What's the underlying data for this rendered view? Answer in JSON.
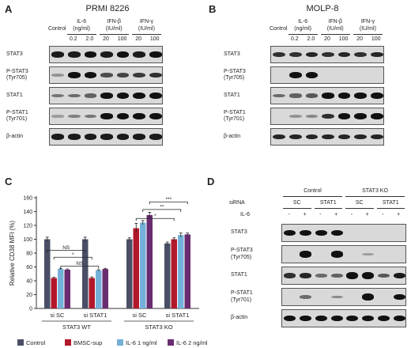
{
  "panels": {
    "a": {
      "letter": "A",
      "title": "PRMI 8226",
      "control": "Control",
      "treatments": [
        {
          "name": "IL-6",
          "unit": "(ng/ml)",
          "doses": [
            "0.2",
            "2.0"
          ]
        },
        {
          "name": "IFN-β",
          "unit": "(IU/ml)",
          "doses": [
            "20",
            "100"
          ]
        },
        {
          "name": "IFN-γ",
          "unit": "(IU/ml)",
          "doses": [
            "20",
            "100"
          ]
        }
      ],
      "rows": [
        {
          "label": "STAT3",
          "bands": [
            0.7,
            0.7,
            0.75,
            0.7,
            0.75,
            0.7,
            0.75
          ]
        },
        {
          "label": "P-STAT3\n(Tyr705)",
          "bands": [
            0.1,
            0.75,
            0.85,
            0.45,
            0.5,
            0.55,
            0.6
          ]
        },
        {
          "label": "STAT1",
          "bands": [
            0.25,
            0.3,
            0.35,
            0.8,
            0.85,
            0.9,
            0.9
          ]
        },
        {
          "label": "P-STAT1\n(Tyr701)",
          "bands": [
            0.05,
            0.2,
            0.25,
            0.8,
            0.9,
            0.9,
            0.95
          ]
        },
        {
          "label": "β-actin",
          "bands": [
            0.7,
            0.7,
            0.7,
            0.7,
            0.7,
            0.7,
            0.7
          ]
        }
      ]
    },
    "b": {
      "letter": "B",
      "title": "MOLP-8",
      "control": "Control",
      "treatments": [
        {
          "name": "IL-6",
          "unit": "(ng/ml)",
          "doses": [
            "0.2",
            "2.0"
          ]
        },
        {
          "name": "IFN-β",
          "unit": "(IU/ml)",
          "doses": [
            "20",
            "100"
          ]
        },
        {
          "name": "IFN-γ",
          "unit": "(IU/ml)",
          "doses": [
            "20",
            "100"
          ]
        }
      ],
      "rows": [
        {
          "label": "STAT3",
          "bands": [
            0.6,
            0.6,
            0.65,
            0.6,
            0.65,
            0.6,
            0.65
          ]
        },
        {
          "label": "P-STAT3\n(Tyr705)",
          "bands": [
            0.0,
            0.85,
            0.9,
            0.0,
            0.0,
            0.0,
            0.0
          ]
        },
        {
          "label": "STAT1",
          "bands": [
            0.3,
            0.35,
            0.4,
            0.8,
            0.85,
            0.85,
            0.9
          ]
        },
        {
          "label": "P-STAT1\n(Tyr701)",
          "bands": [
            0.0,
            0.1,
            0.15,
            0.6,
            0.8,
            0.85,
            0.9
          ]
        },
        {
          "label": "β-actin",
          "bands": [
            0.65,
            0.65,
            0.65,
            0.65,
            0.65,
            0.65,
            0.65
          ]
        }
      ]
    },
    "c": {
      "letter": "C"
    },
    "d": {
      "letter": "D",
      "group_labels": [
        "Control",
        "STAT3 KO"
      ],
      "sirna_label": "siRNA",
      "il6_label": "IL-6",
      "sirna": [
        "SC",
        "STAT1",
        "SC",
        "STAT1"
      ],
      "il6": [
        "-",
        "+",
        "-",
        "+",
        "-",
        "+",
        "-",
        "+"
      ],
      "rows": [
        {
          "label": "STAT3",
          "bands": [
            0.75,
            0.8,
            0.75,
            0.8,
            0.0,
            0.0,
            0.0,
            0.0
          ]
        },
        {
          "label": "P-STAT3\n(Tyr705)",
          "bands": [
            0.0,
            0.85,
            0.0,
            0.85,
            0.0,
            0.05,
            0.0,
            0.0
          ]
        },
        {
          "label": "STAT1",
          "bands": [
            0.6,
            0.65,
            0.3,
            0.35,
            1.0,
            1.0,
            0.4,
            0.7
          ]
        },
        {
          "label": "P-STAT1\n(Tyr701)",
          "bands": [
            0.0,
            0.3,
            0.0,
            0.15,
            0.0,
            0.95,
            0.0,
            0.8
          ]
        },
        {
          "label": "β-actin",
          "bands": [
            0.75,
            0.75,
            0.75,
            0.75,
            0.75,
            0.75,
            0.75,
            0.75
          ]
        }
      ]
    }
  },
  "chart_data": {
    "type": "bar",
    "ylabel": "Relative CD38 MFI (%)",
    "ylim": [
      0,
      160
    ],
    "yticks": [
      0,
      20,
      40,
      60,
      80,
      100,
      120,
      140,
      160
    ],
    "categories": [
      "si SC",
      "si STAT1",
      "si SC",
      "si STAT1"
    ],
    "groups": [
      "STAT3 WT",
      "STAT3 KO"
    ],
    "series": [
      {
        "name": "Control",
        "color": "#4a4f66",
        "values": [
          100,
          100,
          100,
          94
        ],
        "errors": [
          3,
          3,
          2,
          2
        ]
      },
      {
        "name": "BMSC-sup",
        "color": "#b2182b",
        "values": [
          44,
          44,
          116,
          100
        ],
        "errors": [
          1,
          1.5,
          7,
          2
        ]
      },
      {
        "name": "IL-6 1 ng/ml",
        "color": "#74b0d8",
        "values": [
          57,
          55,
          124,
          106
        ],
        "errors": [
          1,
          1,
          3,
          3
        ]
      },
      {
        "name": "IL-6 2 ng/ml",
        "color": "#6a2c70",
        "values": [
          56,
          57,
          135,
          107
        ],
        "errors": [
          1,
          1,
          4,
          2
        ]
      }
    ],
    "significance": [
      {
        "label": "NS",
        "y": 84
      },
      {
        "label": "*",
        "y": 74
      },
      {
        "label": "NS",
        "y": 61
      },
      {
        "label": "***",
        "y": 154
      },
      {
        "label": "**",
        "y": 143
      },
      {
        "label": "*",
        "y": 130
      }
    ],
    "legend_position": "bottom"
  }
}
